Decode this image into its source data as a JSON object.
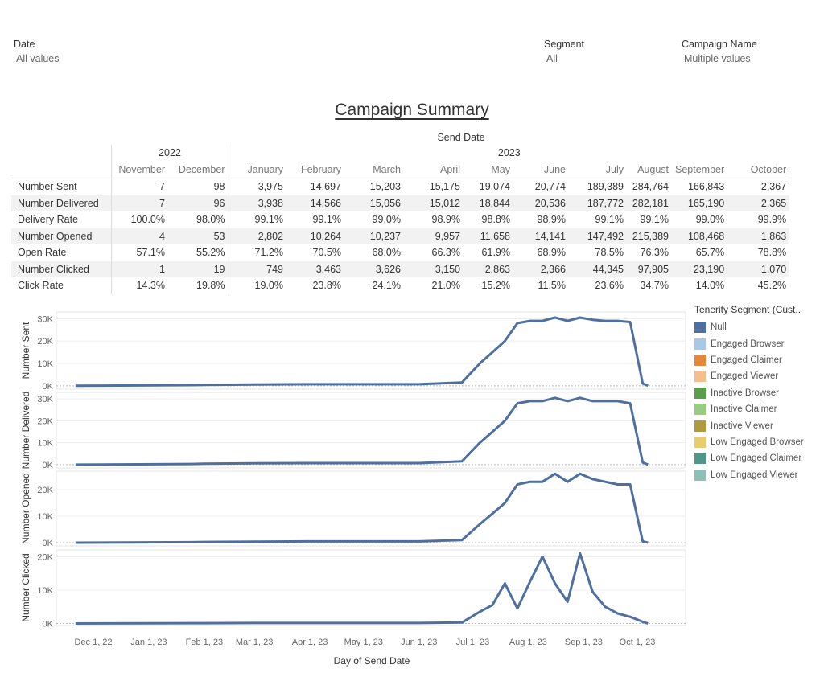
{
  "filters": {
    "date": {
      "label": "Date",
      "value": "All values"
    },
    "segment": {
      "label": "Segment",
      "value": "All"
    },
    "campaign": {
      "label": "Campaign Name",
      "value": "Multiple values"
    }
  },
  "title": "Campaign Summary",
  "summary": {
    "header": "Send Date",
    "years": [
      {
        "label": "2022",
        "span": 2
      },
      {
        "label": "2023",
        "span": 10
      }
    ],
    "months": [
      "November",
      "December",
      "January",
      "February",
      "March",
      "April",
      "May",
      "June",
      "July",
      "August",
      "September",
      "October"
    ],
    "rows": [
      {
        "label": "Number Sent",
        "values": [
          "7",
          "98",
          "3,975",
          "14,697",
          "15,203",
          "15,175",
          "19,074",
          "20,774",
          "189,389",
          "284,764",
          "166,843",
          "2,367"
        ]
      },
      {
        "label": "Number Delivered",
        "values": [
          "7",
          "96",
          "3,938",
          "14,566",
          "15,056",
          "15,012",
          "18,844",
          "20,536",
          "187,772",
          "282,181",
          "165,190",
          "2,365"
        ]
      },
      {
        "label": "Delivery Rate",
        "values": [
          "100.0%",
          "98.0%",
          "99.1%",
          "99.1%",
          "99.0%",
          "98.9%",
          "98.8%",
          "98.9%",
          "99.1%",
          "99.1%",
          "99.0%",
          "99.9%"
        ]
      },
      {
        "label": "Number Opened",
        "values": [
          "4",
          "53",
          "2,802",
          "10,264",
          "10,237",
          "9,957",
          "11,658",
          "14,141",
          "147,492",
          "215,389",
          "108,468",
          "1,863"
        ]
      },
      {
        "label": "Open Rate",
        "values": [
          "57.1%",
          "55.2%",
          "71.2%",
          "70.5%",
          "68.0%",
          "66.3%",
          "61.9%",
          "68.9%",
          "78.5%",
          "76.3%",
          "65.7%",
          "78.8%"
        ]
      },
      {
        "label": "Number Clicked",
        "values": [
          "1",
          "19",
          "749",
          "3,463",
          "3,626",
          "3,150",
          "2,863",
          "2,366",
          "44,345",
          "97,905",
          "23,190",
          "1,070"
        ]
      },
      {
        "label": "Click Rate",
        "values": [
          "14.3%",
          "19.8%",
          "19.0%",
          "23.8%",
          "24.1%",
          "21.0%",
          "15.2%",
          "11.5%",
          "23.6%",
          "34.7%",
          "14.0%",
          "45.2%"
        ]
      }
    ]
  },
  "legend": {
    "title": "Tenerity Segment (Cust..",
    "items": [
      {
        "label": "Null",
        "color": "#4e6f9f"
      },
      {
        "label": "Engaged Browser",
        "color": "#a9c8e8"
      },
      {
        "label": "Engaged Claimer",
        "color": "#e8873a"
      },
      {
        "label": "Engaged Viewer",
        "color": "#f6be8c"
      },
      {
        "label": "Inactive Browser",
        "color": "#5a9e4b"
      },
      {
        "label": "Inactive Claimer",
        "color": "#97cd80"
      },
      {
        "label": "Inactive Viewer",
        "color": "#b09a3e"
      },
      {
        "label": "Low Engaged Browser",
        "color": "#e9cd6c"
      },
      {
        "label": "Low Engaged Claimer",
        "color": "#4f968b"
      },
      {
        "label": "Low Engaged Viewer",
        "color": "#8fc0b7"
      }
    ]
  },
  "chart_data": {
    "type": "line",
    "xlabel": "Day of Send Date",
    "x_ticks": [
      "Dec 1, 22",
      "Jan 1, 23",
      "Feb 1, 23",
      "Mar 1, 23",
      "Apr 1, 23",
      "May 1, 23",
      "Jun 1, 23",
      "Jul 1, 23",
      "Aug 1, 23",
      "Sep 1, 23",
      "Oct 1, 23"
    ],
    "x_range": [
      "2022-11-21",
      "2023-10-07"
    ],
    "grid": true,
    "legend_position": "right",
    "panels": [
      {
        "ylabel": "Number Sent",
        "ylim": [
          -1500,
          33000
        ],
        "ticks": [
          0,
          10000,
          20000,
          30000
        ],
        "tick_labels": [
          "0K",
          "10K",
          "20K",
          "30K"
        ]
      },
      {
        "ylabel": "Number Delivered",
        "ylim": [
          -1500,
          33000
        ],
        "ticks": [
          0,
          10000,
          20000,
          30000
        ],
        "tick_labels": [
          "0K",
          "10K",
          "20K",
          "30K"
        ]
      },
      {
        "ylabel": "Number Opened",
        "ylim": [
          -1200,
          27000
        ],
        "ticks": [
          0,
          10000,
          20000
        ],
        "tick_labels": [
          "0K",
          "10K",
          "20K"
        ]
      },
      {
        "ylabel": "Number Clicked",
        "ylim": [
          -600,
          22000
        ],
        "ticks": [
          0,
          10000,
          20000
        ],
        "tick_labels": [
          "0K",
          "10K",
          "20K"
        ]
      }
    ],
    "series": [
      {
        "name": "Null",
        "panel_values": [
          [
            [
              "2022-11-21",
              0
            ],
            [
              "2023-01-25",
              300
            ],
            [
              "2023-02-01",
              400
            ],
            [
              "2023-03-01",
              600
            ],
            [
              "2023-04-01",
              700
            ],
            [
              "2023-05-01",
              700
            ],
            [
              "2023-06-01",
              700
            ],
            [
              "2023-06-25",
              1500
            ],
            [
              "2023-07-05",
              10000
            ],
            [
              "2023-07-12",
              15000
            ],
            [
              "2023-07-19",
              20000
            ],
            [
              "2023-07-26",
              28000
            ],
            [
              "2023-08-02",
              29000
            ],
            [
              "2023-08-09",
              29000
            ],
            [
              "2023-08-16",
              30500
            ],
            [
              "2023-08-23",
              29000
            ],
            [
              "2023-08-30",
              30500
            ],
            [
              "2023-09-06",
              29500
            ],
            [
              "2023-09-13",
              29000
            ],
            [
              "2023-09-20",
              29000
            ],
            [
              "2023-09-27",
              28500
            ],
            [
              "2023-10-04",
              1000
            ],
            [
              "2023-10-07",
              0
            ]
          ],
          [
            [
              "2022-11-21",
              0
            ],
            [
              "2023-01-25",
              300
            ],
            [
              "2023-02-01",
              400
            ],
            [
              "2023-03-01",
              600
            ],
            [
              "2023-04-01",
              700
            ],
            [
              "2023-05-01",
              700
            ],
            [
              "2023-06-01",
              700
            ],
            [
              "2023-06-25",
              1500
            ],
            [
              "2023-07-05",
              10000
            ],
            [
              "2023-07-12",
              15000
            ],
            [
              "2023-07-19",
              20000
            ],
            [
              "2023-07-26",
              28000
            ],
            [
              "2023-08-02",
              29000
            ],
            [
              "2023-08-09",
              29000
            ],
            [
              "2023-08-16",
              30500
            ],
            [
              "2023-08-23",
              29000
            ],
            [
              "2023-08-30",
              30500
            ],
            [
              "2023-09-06",
              29000
            ],
            [
              "2023-09-13",
              29000
            ],
            [
              "2023-09-20",
              29000
            ],
            [
              "2023-09-27",
              28000
            ],
            [
              "2023-10-04",
              1000
            ],
            [
              "2023-10-07",
              0
            ]
          ],
          [
            [
              "2022-11-21",
              0
            ],
            [
              "2023-01-25",
              200
            ],
            [
              "2023-02-01",
              300
            ],
            [
              "2023-03-01",
              400
            ],
            [
              "2023-04-01",
              500
            ],
            [
              "2023-05-01",
              500
            ],
            [
              "2023-06-01",
              500
            ],
            [
              "2023-06-25",
              1000
            ],
            [
              "2023-07-05",
              7000
            ],
            [
              "2023-07-12",
              11000
            ],
            [
              "2023-07-19",
              15000
            ],
            [
              "2023-07-26",
              22000
            ],
            [
              "2023-08-02",
              23000
            ],
            [
              "2023-08-09",
              23000
            ],
            [
              "2023-08-16",
              26000
            ],
            [
              "2023-08-23",
              23000
            ],
            [
              "2023-08-30",
              26000
            ],
            [
              "2023-09-06",
              24000
            ],
            [
              "2023-09-13",
              23000
            ],
            [
              "2023-09-20",
              22000
            ],
            [
              "2023-09-27",
              22000
            ],
            [
              "2023-10-04",
              500
            ],
            [
              "2023-10-07",
              0
            ]
          ],
          [
            [
              "2022-11-21",
              0
            ],
            [
              "2023-01-25",
              100
            ],
            [
              "2023-02-01",
              100
            ],
            [
              "2023-03-01",
              150
            ],
            [
              "2023-04-01",
              150
            ],
            [
              "2023-05-01",
              150
            ],
            [
              "2023-06-01",
              150
            ],
            [
              "2023-06-25",
              300
            ],
            [
              "2023-07-05",
              3500
            ],
            [
              "2023-07-12",
              5500
            ],
            [
              "2023-07-19",
              12000
            ],
            [
              "2023-07-26",
              4500
            ],
            [
              "2023-08-02",
              12500
            ],
            [
              "2023-08-09",
              20000
            ],
            [
              "2023-08-16",
              12000
            ],
            [
              "2023-08-23",
              6500
            ],
            [
              "2023-08-30",
              21000
            ],
            [
              "2023-09-06",
              9500
            ],
            [
              "2023-09-13",
              5000
            ],
            [
              "2023-09-20",
              3000
            ],
            [
              "2023-09-27",
              2000
            ],
            [
              "2023-10-04",
              500
            ],
            [
              "2023-10-07",
              0
            ]
          ]
        ]
      }
    ]
  }
}
